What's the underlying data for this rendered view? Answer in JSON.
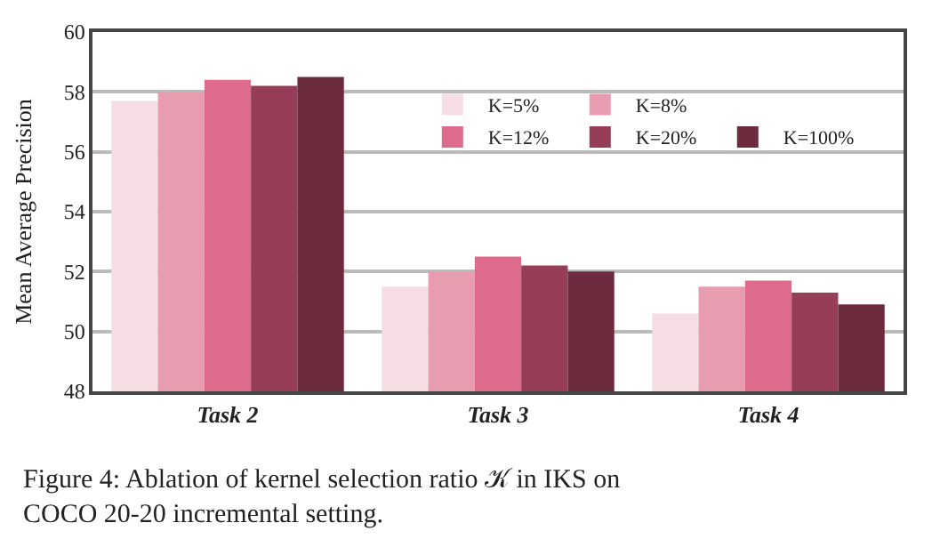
{
  "chart_data": {
    "type": "bar",
    "ylabel": "Mean Average Precision",
    "categories": [
      "Task 2",
      "Task 3",
      "Task 4"
    ],
    "series": [
      {
        "name": "K=5%",
        "color": "#f6dde4",
        "values": [
          57.7,
          51.5,
          50.6
        ]
      },
      {
        "name": "K=8%",
        "color": "#e89cb0",
        "values": [
          58.0,
          52.0,
          51.5
        ]
      },
      {
        "name": "K=12%",
        "color": "#de6b8b",
        "values": [
          58.4,
          52.5,
          51.7
        ]
      },
      {
        "name": "K=20%",
        "color": "#963e58",
        "values": [
          58.2,
          52.2,
          51.3
        ]
      },
      {
        "name": "K=100%",
        "color": "#6c2c3e",
        "values": [
          58.5,
          52.0,
          50.9
        ]
      }
    ],
    "ylim": [
      48,
      60
    ],
    "yticks": [
      48,
      50,
      52,
      54,
      56,
      58,
      60
    ],
    "grid": "y",
    "legend": "top right",
    "annotations": [
      "Figure 4: Ablation of kernel selection ratio 𝒦 in IKS on COCO 20-20 incremental setting."
    ]
  }
}
